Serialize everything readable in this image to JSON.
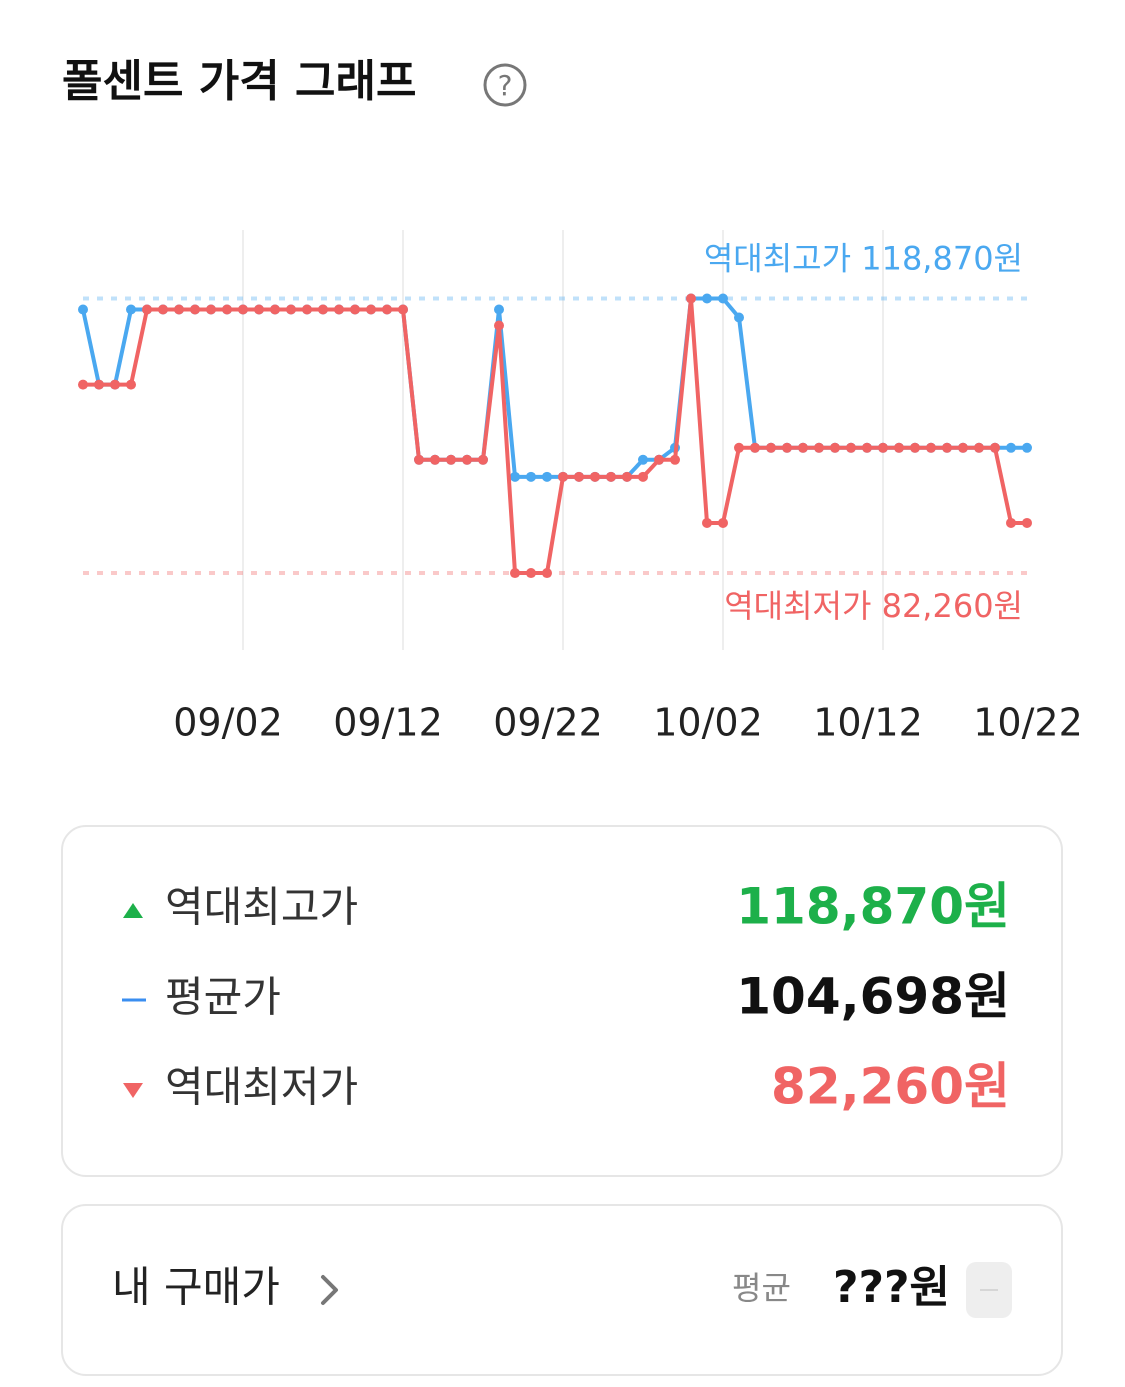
{
  "header": {
    "title": "폴센트 가격 그래프",
    "help_icon": "?"
  },
  "chart_data": {
    "type": "line",
    "categories": [
      null,
      null,
      null,
      null,
      null,
      null,
      null,
      null,
      null,
      null,
      "09/02",
      null,
      null,
      null,
      null,
      null,
      null,
      null,
      null,
      null,
      "09/12",
      null,
      null,
      null,
      null,
      null,
      null,
      null,
      null,
      null,
      "09/22",
      null,
      null,
      null,
      null,
      null,
      null,
      null,
      null,
      null,
      "10/02",
      null,
      null,
      null,
      null,
      null,
      null,
      null,
      null,
      null,
      "10/12",
      null,
      null,
      null,
      null,
      null,
      null,
      null,
      null,
      null,
      "10/22"
    ],
    "series": [
      {
        "color": "#4aa8f0",
        "values": [
          117400,
          107380,
          107380,
          117400,
          117400,
          117400,
          117400,
          117400,
          117400,
          117400,
          117400,
          117400,
          117400,
          117400,
          117400,
          117400,
          117400,
          117400,
          117400,
          117400,
          117400,
          97360,
          97360,
          97360,
          97360,
          97360,
          117400,
          95090,
          95090,
          95090,
          95090,
          95090,
          95090,
          95090,
          95090,
          97360,
          97360,
          98960,
          118870,
          118870,
          118870,
          116330,
          98960,
          98960,
          98960,
          98960,
          98960,
          98960,
          98960,
          98960,
          98960,
          98960,
          98960,
          98960,
          98960,
          98960,
          98960,
          98960,
          98960,
          98960,
          null
        ]
      },
      {
        "color": "#f06464",
        "values": [
          107380,
          107380,
          107380,
          107380,
          117400,
          117400,
          117400,
          117400,
          117400,
          117400,
          117400,
          117400,
          117400,
          117400,
          117400,
          117400,
          117400,
          117400,
          117400,
          117400,
          117400,
          97360,
          97360,
          97360,
          97360,
          97360,
          115270,
          82260,
          82260,
          82260,
          95090,
          95090,
          95090,
          95090,
          95090,
          95090,
          97360,
          97360,
          118870,
          88940,
          88940,
          98960,
          98960,
          98960,
          98960,
          98960,
          98960,
          98960,
          98960,
          98960,
          98960,
          98960,
          98960,
          98960,
          98960,
          98960,
          98960,
          98960,
          88940,
          88940,
          null
        ]
      }
    ],
    "ylim": [
      72000,
      128000
    ],
    "grid": true,
    "reference_lines": [
      {
        "label": "역대최고가",
        "value": 118870,
        "value_label": "118,870원",
        "color": "#4aa8f0"
      },
      {
        "label": "역대최저가",
        "value": 82260,
        "value_label": "82,260원",
        "color": "#f06464"
      }
    ]
  },
  "summary": {
    "rows": [
      {
        "label": "역대최고가",
        "value": "118,870원"
      },
      {
        "label": "평균가",
        "value": "104,698원"
      },
      {
        "label": "역대최저가",
        "value": "82,260원"
      }
    ]
  },
  "my_price": {
    "label": "내 구매가",
    "avg_label": "평균",
    "value": "???원"
  }
}
